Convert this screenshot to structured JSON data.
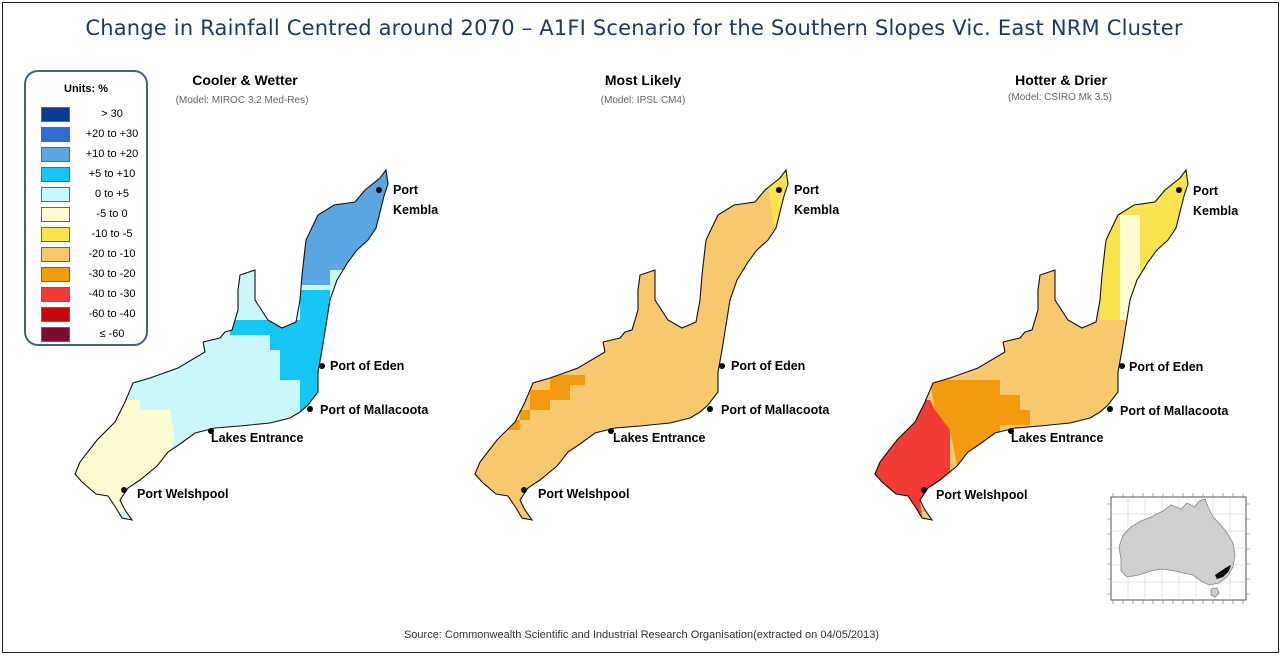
{
  "title": "Change in Rainfall Centred around 2070 – A1FI Scenario for the Southern Slopes Vic. East NRM Cluster",
  "legend": {
    "title": "Units: %",
    "items": [
      {
        "label": "> 30",
        "color": "#0a3a92"
      },
      {
        "label": "+20 to +30",
        "color": "#2e6ed0"
      },
      {
        "label": "+10 to +20",
        "color": "#5aa6e0"
      },
      {
        "label": "+5 to +10",
        "color": "#16c6f5"
      },
      {
        "label": "0 to +5",
        "color": "#caf7f9"
      },
      {
        "label": "-5 to 0",
        "color": "#fdfbd2"
      },
      {
        "label": "-10 to -5",
        "color": "#fbe24f"
      },
      {
        "label": "-20 to -10",
        "color": "#f8c86f"
      },
      {
        "label": "-30 to -20",
        "color": "#f49a0e"
      },
      {
        "label": "-40 to -30",
        "color": "#f23a36"
      },
      {
        "label": "-60 to -40",
        "color": "#c3070f"
      },
      {
        "label": "≤ -60",
        "color": "#7d0a32"
      }
    ]
  },
  "panels": [
    {
      "name": "Cooler & Wetter",
      "model": "(Model: MIROC 3.2 Med-Res)"
    },
    {
      "name": "Most Likely",
      "model": "(Model: IPSL CM4)"
    },
    {
      "name": "Hotter & Drier",
      "model": "(Model: CSIRO Mk 3.5)"
    }
  ],
  "places": {
    "port": "Port",
    "kembla": "Kembla",
    "eden": "Port of Eden",
    "mallacoota": "Port of Mallacoota",
    "lakes": "Lakes Entrance",
    "welshpool": "Port Welshpool"
  },
  "source": "Source: Commonwealth Scientific and Industrial Research Organisation(extracted on 04/05/2013)"
}
